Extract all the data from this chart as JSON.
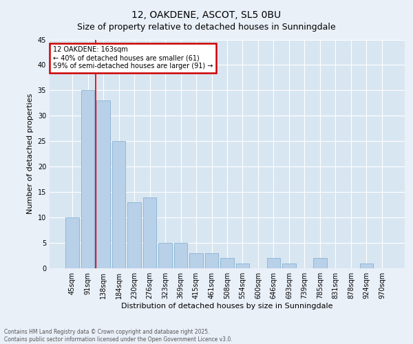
{
  "title": "12, OAKDENE, ASCOT, SL5 0BU",
  "subtitle": "Size of property relative to detached houses in Sunningdale",
  "xlabel": "Distribution of detached houses by size in Sunningdale",
  "ylabel": "Number of detached properties",
  "categories": [
    "45sqm",
    "91sqm",
    "138sqm",
    "184sqm",
    "230sqm",
    "276sqm",
    "323sqm",
    "369sqm",
    "415sqm",
    "461sqm",
    "508sqm",
    "554sqm",
    "600sqm",
    "646sqm",
    "693sqm",
    "739sqm",
    "785sqm",
    "831sqm",
    "878sqm",
    "924sqm",
    "970sqm"
  ],
  "values": [
    10,
    35,
    33,
    25,
    13,
    14,
    5,
    5,
    3,
    3,
    2,
    1,
    0,
    2,
    1,
    0,
    2,
    0,
    0,
    1,
    0
  ],
  "bar_color": "#b8d0e8",
  "bar_edge_color": "#7aabcc",
  "property_line_index": 1.5,
  "annotation_title": "12 OAKDENE: 163sqm",
  "annotation_line1": "← 40% of detached houses are smaller (61)",
  "annotation_line2": "59% of semi-detached houses are larger (91) →",
  "annotation_box_color": "#cc0000",
  "ylim": [
    0,
    45
  ],
  "yticks": [
    0,
    5,
    10,
    15,
    20,
    25,
    30,
    35,
    40,
    45
  ],
  "footer_line1": "Contains HM Land Registry data © Crown copyright and database right 2025.",
  "footer_line2": "Contains public sector information licensed under the Open Government Licence v3.0.",
  "bg_color": "#eaf0f8",
  "plot_bg_color": "#d8e6f2",
  "title_fontsize": 10,
  "subtitle_fontsize": 9,
  "xlabel_fontsize": 8,
  "ylabel_fontsize": 8,
  "tick_fontsize": 7
}
